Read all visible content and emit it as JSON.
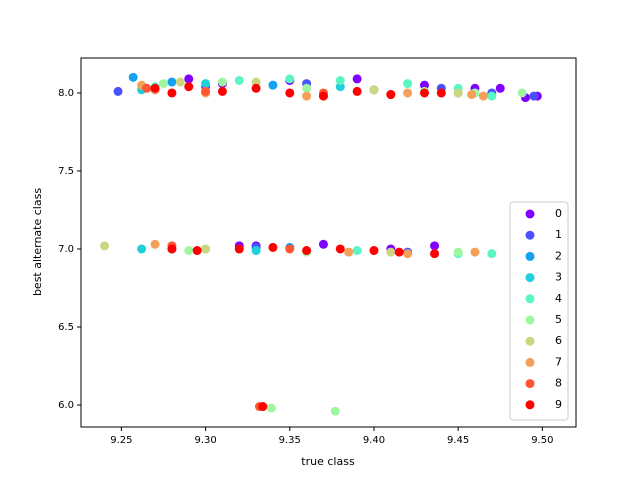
{
  "chart_data": {
    "type": "scatter",
    "xlabel": "true class",
    "ylabel": "best alternate class",
    "xlim": [
      9.226,
      9.52
    ],
    "ylim": [
      5.859,
      8.224
    ],
    "xticks": [
      9.25,
      {
        "value": 9.3,
        "label": "9.30"
      },
      9.35,
      {
        "value": 9.4,
        "label": "9.40"
      },
      9.45,
      {
        "value": 9.5,
        "label": "9.50"
      }
    ],
    "yticks": [
      {
        "value": 6,
        "label": "6.0"
      },
      6.5,
      {
        "value": 7,
        "label": "7.0"
      },
      7.5,
      {
        "value": 8,
        "label": "8.0"
      }
    ],
    "legend": "lower right",
    "series": [
      {
        "name": "0",
        "color": "#8000ff",
        "x": [
          9.27,
          9.29,
          9.31,
          9.35,
          9.39,
          9.43,
          9.46,
          9.475,
          9.49,
          9.497,
          9.33,
          9.37,
          9.41,
          9.436,
          9.32
        ],
        "values": [
          8.02,
          8.09,
          8.06,
          8.08,
          8.09,
          8.05,
          8.03,
          8.03,
          7.97,
          7.98,
          7.02,
          7.03,
          7.0,
          7.02,
          7.02
        ]
      },
      {
        "name": "1",
        "color": "#4a53fb",
        "x": [
          9.248,
          9.3,
          9.36,
          9.44,
          9.47,
          9.495,
          9.33,
          9.42
        ],
        "values": [
          8.01,
          8.04,
          8.06,
          8.03,
          8.0,
          7.98,
          7.01,
          6.98
        ]
      },
      {
        "name": "2",
        "color": "#16a0f0",
        "x": [
          9.257,
          9.28,
          9.34,
          9.4,
          9.45,
          9.28,
          9.35
        ],
        "values": [
          8.1,
          8.07,
          8.05,
          8.02,
          8.0,
          7.0,
          7.01
        ]
      },
      {
        "name": "3",
        "color": "#1fd0dc",
        "x": [
          9.262,
          9.3,
          9.38,
          9.46,
          9.262,
          9.33
        ],
        "values": [
          8.02,
          8.06,
          8.04,
          8.0,
          7.0,
          6.99
        ]
      },
      {
        "name": "4",
        "color": "#5cf5c6",
        "x": [
          9.27,
          9.32,
          9.35,
          9.38,
          9.42,
          9.45,
          9.47,
          9.3,
          9.39,
          9.45,
          9.47
        ],
        "values": [
          8.04,
          8.08,
          8.09,
          8.08,
          8.06,
          8.03,
          7.98,
          7.0,
          6.99,
          6.97,
          6.97
        ]
      },
      {
        "name": "5",
        "color": "#a0f5a0",
        "x": [
          9.275,
          9.31,
          9.36,
          9.43,
          9.46,
          9.488,
          9.29,
          9.36,
          9.4,
          9.45,
          9.339,
          9.377
        ],
        "values": [
          8.06,
          8.07,
          8.03,
          8.01,
          8.0,
          8.0,
          6.99,
          6.98,
          6.99,
          6.98,
          5.98,
          5.96
        ]
      },
      {
        "name": "6",
        "color": "#ccd680",
        "x": [
          9.24,
          9.285,
          9.33,
          9.4,
          9.45,
          9.3,
          9.41
        ],
        "values": [
          7.02,
          8.07,
          8.07,
          8.02,
          8.0,
          7.0,
          6.98
        ]
      },
      {
        "name": "7",
        "color": "#f5a05a",
        "x": [
          9.262,
          9.27,
          9.3,
          9.36,
          9.42,
          9.458,
          9.465,
          9.27,
          9.32,
          9.385,
          9.42,
          9.46
        ],
        "values": [
          8.05,
          8.02,
          8.0,
          7.98,
          8.0,
          7.99,
          7.98,
          7.03,
          7.0,
          6.98,
          6.97,
          6.98
        ]
      },
      {
        "name": "8",
        "color": "#ff5530",
        "x": [
          9.265,
          9.3,
          9.37,
          9.41,
          9.332,
          9.28,
          9.35
        ],
        "values": [
          8.03,
          8.01,
          8.0,
          7.99,
          5.99,
          7.02,
          7.0
        ]
      },
      {
        "name": "9",
        "color": "#ff0000",
        "x": [
          9.27,
          9.28,
          9.29,
          9.31,
          9.33,
          9.35,
          9.37,
          9.39,
          9.41,
          9.43,
          9.44,
          9.28,
          9.295,
          9.32,
          9.34,
          9.36,
          9.38,
          9.4,
          9.415,
          9.436,
          9.334
        ],
        "values": [
          8.03,
          8.0,
          8.04,
          8.01,
          8.03,
          8.0,
          7.98,
          8.01,
          7.99,
          8.0,
          8.0,
          7.0,
          6.99,
          7.0,
          7.01,
          6.99,
          7.0,
          6.99,
          6.98,
          6.97,
          5.99
        ]
      }
    ]
  }
}
